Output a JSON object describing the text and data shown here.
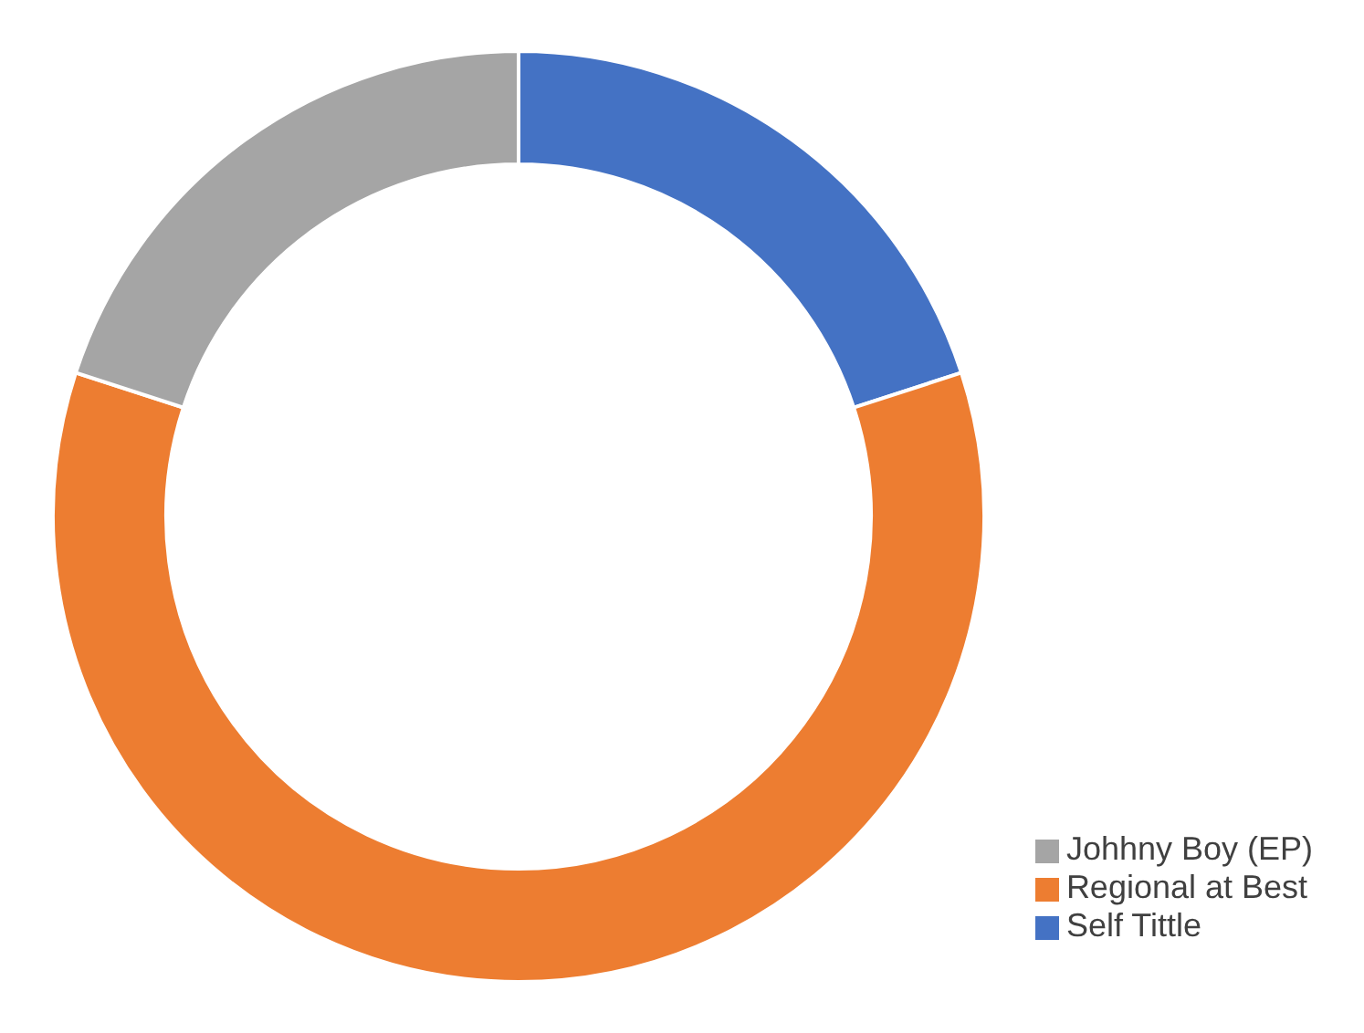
{
  "chart_data": {
    "type": "donut",
    "categories": [
      "Self Tittle",
      "Regional at Best",
      "Johhny Boy (EP)"
    ],
    "values": [
      20,
      60,
      20
    ],
    "colors": [
      "#4472c4",
      "#ed7d31",
      "#a5a5a5"
    ],
    "legend": "bottom right"
  }
}
